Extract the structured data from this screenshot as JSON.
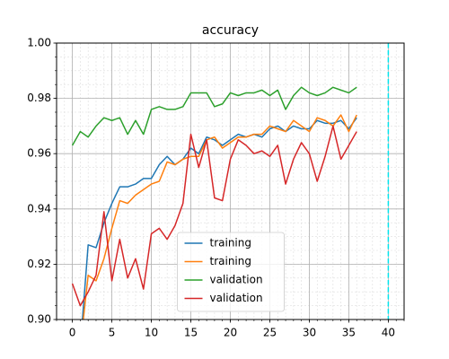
{
  "chart_data": {
    "type": "line",
    "title": "accuracy",
    "xlim": [
      -2,
      42
    ],
    "ylim": [
      0.9,
      1.0
    ],
    "xticks": [
      0,
      5,
      10,
      15,
      20,
      25,
      30,
      35,
      40
    ],
    "yticks": [
      {
        "value": 0.9,
        "label": "0.90"
      },
      {
        "value": 0.92,
        "label": "0.92"
      },
      {
        "value": 0.94,
        "label": "0.94"
      },
      {
        "value": 0.96,
        "label": "0.96"
      },
      {
        "value": 0.98,
        "label": "0.98"
      },
      {
        "value": 1.0,
        "label": "1.00"
      }
    ],
    "grid": true,
    "minor_grid": true,
    "minor_xstep": 1,
    "minor_ystep": 0.005,
    "legend": "lower center",
    "vline": 40,
    "vline_color": "#00e5ee",
    "series": [
      {
        "name": "training",
        "color": "#1f77b4",
        "x": [
          1,
          2,
          3,
          4,
          5,
          6,
          7,
          8,
          9,
          10,
          11,
          12,
          13,
          14,
          15,
          16,
          17,
          18,
          19,
          20,
          21,
          22,
          23,
          24,
          25,
          26,
          27,
          28,
          29,
          30,
          31,
          32,
          33,
          34,
          35,
          36
        ],
        "values": [
          0.89,
          0.927,
          0.926,
          0.935,
          0.942,
          0.948,
          0.948,
          0.949,
          0.951,
          0.951,
          0.956,
          0.959,
          0.956,
          0.958,
          0.962,
          0.96,
          0.966,
          0.965,
          0.963,
          0.965,
          0.967,
          0.966,
          0.967,
          0.966,
          0.969,
          0.97,
          0.968,
          0.97,
          0.969,
          0.969,
          0.972,
          0.971,
          0.971,
          0.972,
          0.969,
          0.973
        ]
      },
      {
        "name": "training",
        "color": "#ff7f0e",
        "x": [
          1,
          2,
          3,
          4,
          5,
          6,
          7,
          8,
          9,
          10,
          11,
          12,
          13,
          14,
          15,
          16,
          17,
          18,
          19,
          20,
          21,
          22,
          23,
          24,
          25,
          26,
          27,
          28,
          29,
          30,
          31,
          32,
          33,
          34,
          35,
          36
        ],
        "values": [
          0.89,
          0.916,
          0.914,
          0.922,
          0.933,
          0.943,
          0.942,
          0.945,
          0.947,
          0.949,
          0.95,
          0.957,
          0.956,
          0.958,
          0.959,
          0.959,
          0.965,
          0.966,
          0.962,
          0.964,
          0.966,
          0.966,
          0.967,
          0.967,
          0.97,
          0.969,
          0.968,
          0.972,
          0.97,
          0.968,
          0.973,
          0.972,
          0.97,
          0.974,
          0.968,
          0.974
        ]
      },
      {
        "name": "validation",
        "color": "#2ca02c",
        "x": [
          0,
          1,
          2,
          3,
          4,
          5,
          6,
          7,
          8,
          9,
          10,
          11,
          12,
          13,
          14,
          15,
          16,
          17,
          18,
          19,
          20,
          21,
          22,
          23,
          24,
          25,
          26,
          27,
          28,
          29,
          30,
          31,
          32,
          33,
          34,
          35,
          36
        ],
        "values": [
          0.963,
          0.968,
          0.966,
          0.97,
          0.973,
          0.972,
          0.973,
          0.967,
          0.972,
          0.967,
          0.976,
          0.977,
          0.976,
          0.976,
          0.977,
          0.982,
          0.982,
          0.982,
          0.977,
          0.978,
          0.982,
          0.981,
          0.982,
          0.982,
          0.983,
          0.981,
          0.983,
          0.976,
          0.981,
          0.984,
          0.982,
          0.981,
          0.982,
          0.984,
          0.983,
          0.982,
          0.984
        ]
      },
      {
        "name": "validation",
        "color": "#d62728",
        "x": [
          0,
          1,
          2,
          3,
          4,
          5,
          6,
          7,
          8,
          9,
          10,
          11,
          12,
          13,
          14,
          15,
          16,
          17,
          18,
          19,
          20,
          21,
          22,
          23,
          24,
          25,
          26,
          27,
          28,
          29,
          30,
          31,
          32,
          33,
          34,
          35,
          36
        ],
        "values": [
          0.913,
          0.905,
          0.91,
          0.916,
          0.939,
          0.914,
          0.929,
          0.915,
          0.922,
          0.911,
          0.931,
          0.933,
          0.929,
          0.934,
          0.942,
          0.967,
          0.955,
          0.965,
          0.944,
          0.943,
          0.958,
          0.965,
          0.963,
          0.96,
          0.961,
          0.959,
          0.963,
          0.949,
          0.958,
          0.964,
          0.96,
          0.95,
          0.959,
          0.97,
          0.958,
          0.963,
          0.968
        ]
      }
    ]
  }
}
